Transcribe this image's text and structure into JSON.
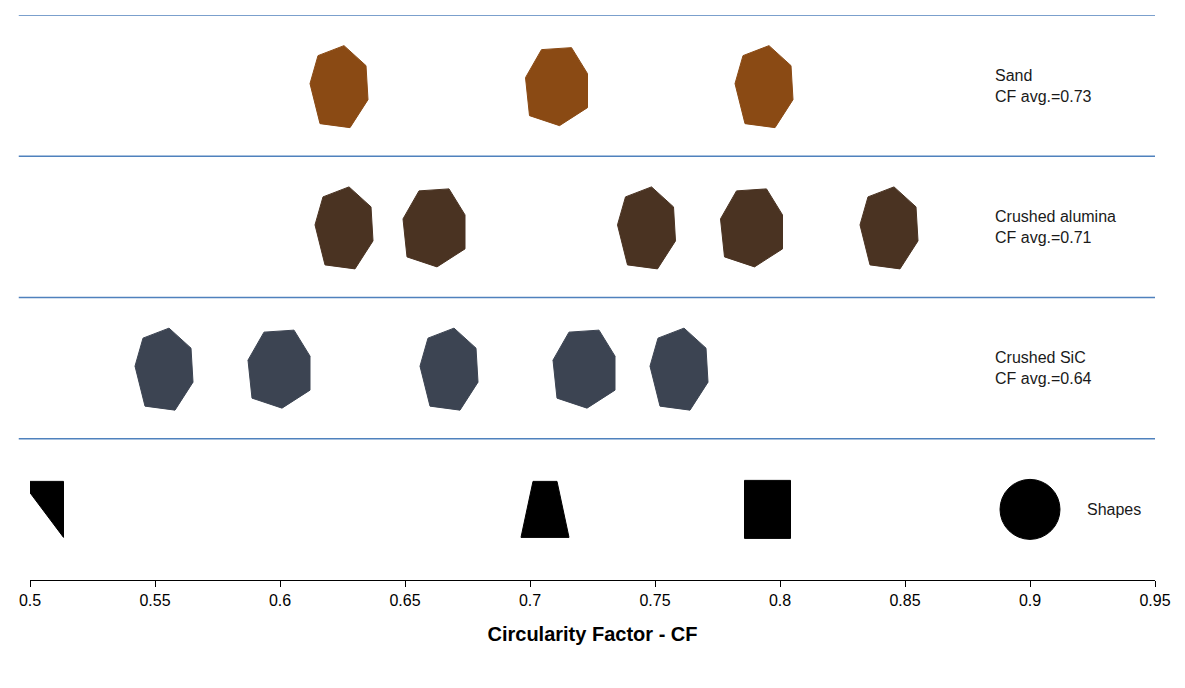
{
  "chart_data": {
    "type": "scatter",
    "xlabel": "Circularity Factor - CF",
    "xlim": [
      0.5,
      0.95
    ],
    "xticks": [
      0.5,
      0.55,
      0.6,
      0.65,
      0.7,
      0.75,
      0.8,
      0.85,
      0.9,
      0.95
    ],
    "grid": false,
    "tick_labels": "x",
    "series": [
      {
        "name": "Sand",
        "annotation": "CF avg.=0.73",
        "color": "#8a4a14",
        "marker": "particle",
        "values": [
          0.624,
          0.711,
          0.794
        ]
      },
      {
        "name": "Crushed alumina",
        "annotation": "CF avg.=0.71",
        "color": "#4a3322",
        "marker": "particle",
        "values": [
          0.626,
          0.662,
          0.747,
          0.789,
          0.844
        ]
      },
      {
        "name": "Crushed SiC",
        "annotation": "CF avg.=0.64",
        "color": "#3c4452",
        "marker": "particle",
        "values": [
          0.554,
          0.6,
          0.668,
          0.722,
          0.76
        ]
      },
      {
        "name": "Shapes",
        "color": "#000000",
        "marker": [
          "right-triangle",
          "trapezoid",
          "square",
          "circle"
        ],
        "values": [
          0.505,
          0.706,
          0.795,
          0.9
        ]
      }
    ]
  }
}
